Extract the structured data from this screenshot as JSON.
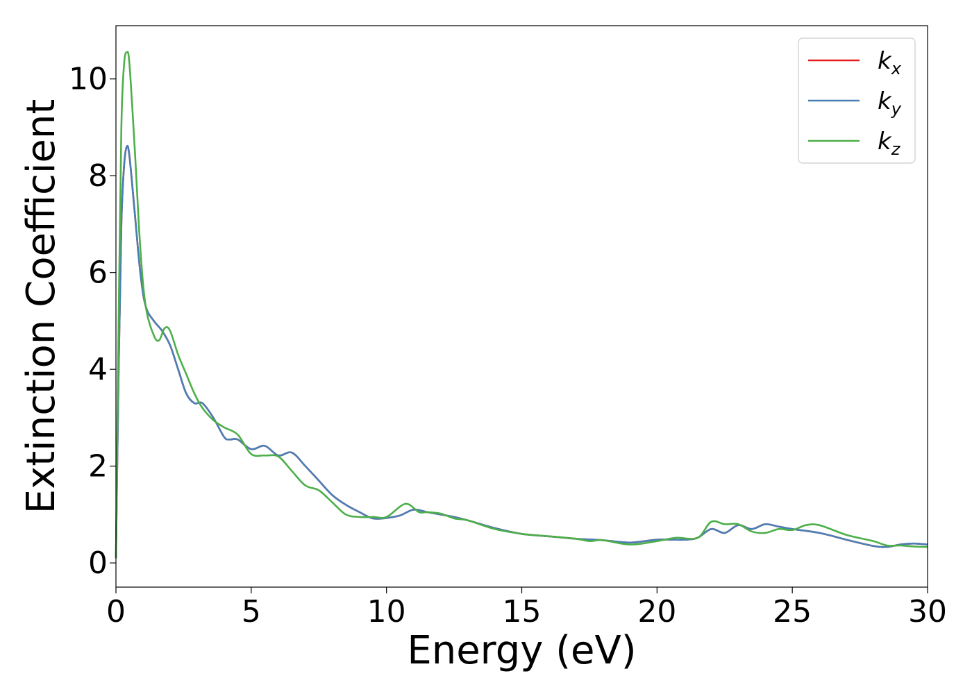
{
  "chart_data": {
    "type": "line",
    "title": "",
    "xlabel": "Energy (eV)",
    "ylabel": "Extinction Coefficient",
    "xlim": [
      0,
      30
    ],
    "ylim": [
      -0.5,
      11.1
    ],
    "xticks": [
      0,
      5,
      10,
      15,
      20,
      25,
      30
    ],
    "yticks": [
      0,
      2,
      4,
      6,
      8,
      10
    ],
    "grid": false,
    "legend_position": "top-right",
    "series": [
      {
        "name": "k",
        "subscript": "x",
        "color": "#e41a1c",
        "x": [
          0,
          0.1,
          0.2,
          0.3,
          0.4,
          0.5,
          0.7,
          0.9,
          1.1,
          1.4,
          1.7,
          2.0,
          2.3,
          2.6,
          2.9,
          3.2,
          3.6,
          4.0,
          4.2,
          4.5,
          5.0,
          5.5,
          6.0,
          6.5,
          7.0,
          7.5,
          8.0,
          8.5,
          9.0,
          9.5,
          10.0,
          10.5,
          11.0,
          11.5,
          12.0,
          12.5,
          13.0,
          14.0,
          15.0,
          16.0,
          17.0,
          18.0,
          19.0,
          20.0,
          21.0,
          21.5,
          22.0,
          22.5,
          23.0,
          23.5,
          24.0,
          24.5,
          25.0,
          26.0,
          27.0,
          28.0,
          28.5,
          29.0,
          29.5,
          30.0
        ],
        "values": [
          0.1,
          4.0,
          7.0,
          8.2,
          8.6,
          8.4,
          7.2,
          6.0,
          5.3,
          5.0,
          4.8,
          4.5,
          4.0,
          3.5,
          3.3,
          3.3,
          3.0,
          2.6,
          2.55,
          2.55,
          2.35,
          2.42,
          2.22,
          2.28,
          2.0,
          1.7,
          1.4,
          1.2,
          1.05,
          0.92,
          0.93,
          0.98,
          1.1,
          1.05,
          1.0,
          0.95,
          0.88,
          0.72,
          0.6,
          0.55,
          0.5,
          0.47,
          0.42,
          0.48,
          0.48,
          0.52,
          0.7,
          0.62,
          0.78,
          0.7,
          0.8,
          0.75,
          0.7,
          0.62,
          0.48,
          0.35,
          0.33,
          0.38,
          0.4,
          0.38
        ]
      },
      {
        "name": "k",
        "subscript": "y",
        "color": "#4a7fb5",
        "x": [
          0,
          0.1,
          0.2,
          0.3,
          0.4,
          0.5,
          0.7,
          0.9,
          1.1,
          1.4,
          1.7,
          2.0,
          2.3,
          2.6,
          2.9,
          3.2,
          3.6,
          4.0,
          4.2,
          4.5,
          5.0,
          5.5,
          6.0,
          6.5,
          7.0,
          7.5,
          8.0,
          8.5,
          9.0,
          9.5,
          10.0,
          10.5,
          11.0,
          11.5,
          12.0,
          12.5,
          13.0,
          14.0,
          15.0,
          16.0,
          17.0,
          18.0,
          19.0,
          20.0,
          21.0,
          21.5,
          22.0,
          22.5,
          23.0,
          23.5,
          24.0,
          24.5,
          25.0,
          26.0,
          27.0,
          28.0,
          28.5,
          29.0,
          29.5,
          30.0
        ],
        "values": [
          0.1,
          4.0,
          7.0,
          8.2,
          8.6,
          8.4,
          7.2,
          6.0,
          5.3,
          5.0,
          4.8,
          4.5,
          4.0,
          3.5,
          3.3,
          3.3,
          3.0,
          2.6,
          2.55,
          2.55,
          2.35,
          2.42,
          2.22,
          2.28,
          2.0,
          1.7,
          1.4,
          1.2,
          1.05,
          0.92,
          0.93,
          0.98,
          1.1,
          1.05,
          1.0,
          0.95,
          0.88,
          0.72,
          0.6,
          0.55,
          0.5,
          0.47,
          0.42,
          0.48,
          0.48,
          0.52,
          0.7,
          0.62,
          0.78,
          0.7,
          0.8,
          0.75,
          0.7,
          0.62,
          0.48,
          0.35,
          0.33,
          0.38,
          0.4,
          0.38
        ]
      },
      {
        "name": "k",
        "subscript": "z",
        "color": "#4daf4a",
        "x": [
          0,
          0.1,
          0.2,
          0.3,
          0.4,
          0.5,
          0.7,
          0.9,
          1.1,
          1.4,
          1.6,
          1.8,
          2.0,
          2.3,
          2.6,
          2.9,
          3.2,
          3.6,
          4.0,
          4.5,
          5.0,
          5.5,
          6.0,
          6.5,
          7.0,
          7.5,
          8.0,
          8.5,
          9.0,
          9.5,
          10.0,
          10.7,
          11.2,
          11.5,
          12.0,
          12.5,
          13.0,
          14.0,
          15.0,
          16.0,
          17.0,
          17.5,
          18.0,
          19.0,
          20.0,
          20.7,
          21.5,
          22.0,
          22.5,
          23.0,
          23.5,
          24.0,
          24.5,
          25.0,
          25.5,
          26.0,
          27.0,
          28.0,
          28.5,
          29.0,
          29.5,
          30.0
        ],
        "values": [
          0.1,
          5.0,
          9.0,
          10.3,
          10.55,
          10.3,
          8.5,
          6.5,
          5.3,
          4.7,
          4.6,
          4.85,
          4.8,
          4.3,
          3.9,
          3.5,
          3.2,
          2.95,
          2.8,
          2.65,
          2.25,
          2.22,
          2.2,
          1.9,
          1.6,
          1.5,
          1.25,
          1.0,
          0.95,
          0.95,
          0.95,
          1.22,
          1.05,
          1.05,
          1.02,
          0.92,
          0.88,
          0.7,
          0.6,
          0.55,
          0.5,
          0.45,
          0.47,
          0.38,
          0.45,
          0.52,
          0.52,
          0.85,
          0.8,
          0.8,
          0.65,
          0.62,
          0.7,
          0.68,
          0.78,
          0.78,
          0.58,
          0.45,
          0.36,
          0.36,
          0.34,
          0.33
        ]
      }
    ]
  }
}
